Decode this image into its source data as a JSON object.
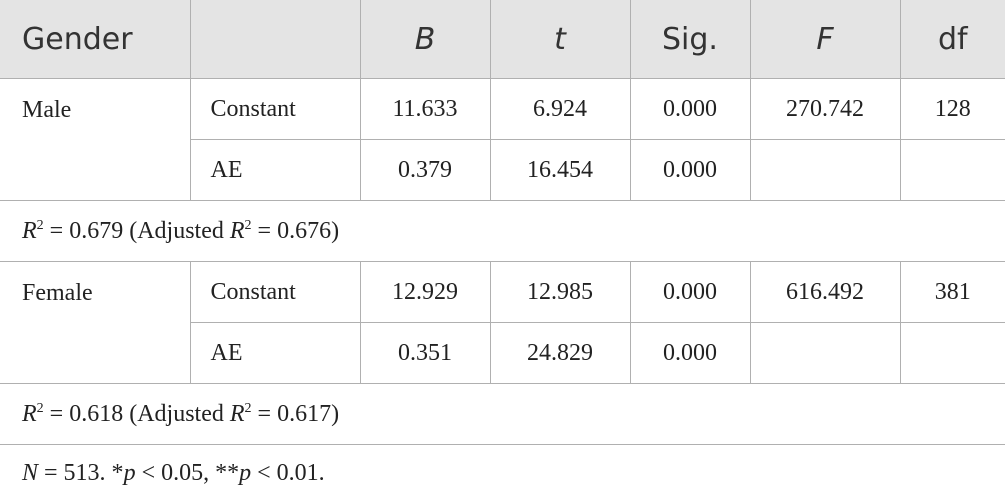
{
  "table": {
    "header": [
      "Gender",
      "B",
      "t",
      "Sig.",
      "F",
      "df"
    ],
    "groups": [
      {
        "gender": "Male",
        "rows": [
          [
            "Constant",
            "11.633",
            "6.924",
            "0.000",
            "270.742",
            "128"
          ],
          [
            "AE",
            "0.379",
            "16.454",
            "0.000"
          ]
        ],
        "summary": [
          "R",
          "2",
          " = 0.679 (Adjusted ",
          "R",
          "2",
          " = 0.676)"
        ]
      },
      {
        "gender": "Female",
        "rows": [
          [
            "Constant",
            "12.929",
            "12.985",
            "0.000",
            "616.492",
            "381"
          ],
          [
            "AE",
            "0.351",
            "24.829",
            "0.000"
          ]
        ],
        "summary": [
          "R",
          "2",
          " = 0.618 (Adjusted ",
          "R",
          "2",
          " = 0.617)"
        ]
      }
    ],
    "note": [
      "N",
      " = 513. *",
      "p",
      " < 0.05, **",
      "p",
      " < 0.01."
    ]
  }
}
